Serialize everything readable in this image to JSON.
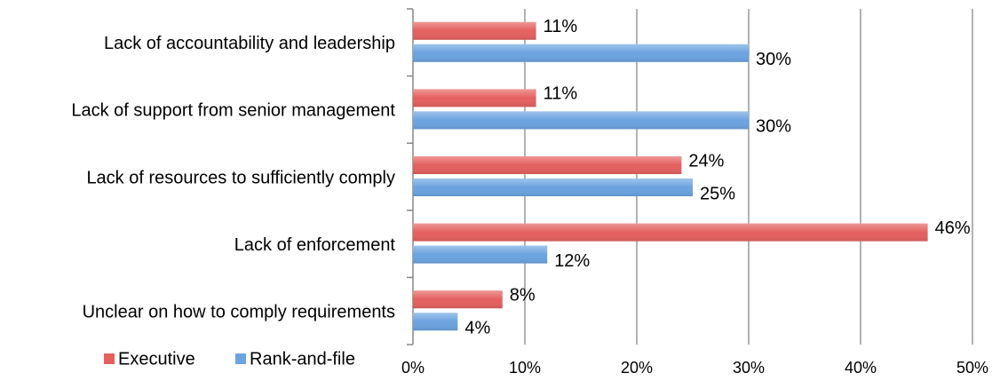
{
  "chart_data": {
    "type": "bar",
    "orientation": "horizontal",
    "categories": [
      "Lack of accountability and leadership",
      "Lack of support from senior management",
      "Lack of resources to sufficiently comply",
      "Lack of enforcement",
      "Unclear on how to comply requirements"
    ],
    "series": [
      {
        "name": "Executive",
        "color": "#e4605e",
        "values": [
          11,
          11,
          24,
          46,
          8
        ],
        "value_labels": [
          "11%",
          "11%",
          "24%",
          "46%",
          "8%"
        ]
      },
      {
        "name": "Rank-and-file",
        "color": "#6ba3e0",
        "values": [
          30,
          30,
          25,
          12,
          4
        ],
        "value_labels": [
          "30%",
          "30%",
          "25%",
          "12%",
          "4%"
        ]
      }
    ],
    "xlim": [
      0,
      50
    ],
    "xticks": [
      {
        "value": 0,
        "label": "0%"
      },
      {
        "value": 10,
        "label": "10%"
      },
      {
        "value": 20,
        "label": "20%"
      },
      {
        "value": 30,
        "label": "30%"
      },
      {
        "value": 40,
        "label": "40%"
      },
      {
        "value": 50,
        "label": "50%"
      }
    ],
    "grid": true,
    "legend": "bottom-left"
  }
}
